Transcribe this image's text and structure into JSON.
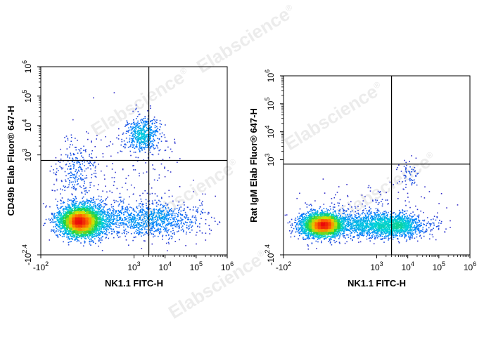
{
  "watermark": {
    "text": "Elabscience",
    "mark": "®"
  },
  "chart_data": [
    {
      "type": "scatter",
      "subtype": "flow-cytometry-density-dot-plot",
      "xlabel": "NK1.1 FITC-H",
      "ylabel": "CD49b Elab Fluor® 647-H",
      "x_scale": "biexponential",
      "y_scale": "biexponential",
      "xlim": [
        -100,
        1000000
      ],
      "ylim": [
        -250,
        1000000
      ],
      "x_ticks": [
        {
          "value": -100,
          "base": "-10",
          "exp": "2"
        },
        {
          "value": 1000,
          "base": "10",
          "exp": "3"
        },
        {
          "value": 10000,
          "base": "10",
          "exp": "4"
        },
        {
          "value": 100000,
          "base": "10",
          "exp": "5"
        },
        {
          "value": 1000000,
          "base": "10",
          "exp": "6"
        }
      ],
      "y_ticks": [
        {
          "value": -250,
          "base": "-10",
          "exp": "2.4"
        },
        {
          "value": 1000,
          "base": "10",
          "exp": "3"
        },
        {
          "value": 10000,
          "base": "10",
          "exp": "4"
        },
        {
          "value": 100000,
          "base": "10",
          "exp": "5"
        },
        {
          "value": 1000000,
          "base": "10",
          "exp": "6"
        }
      ],
      "quadrant_gate": {
        "x": 3000,
        "y": 650
      },
      "populations": [
        {
          "name": "double-negative",
          "center": [
            250,
            20
          ],
          "spread": "dense, main"
        },
        {
          "name": "NK1.1+ CD49b+",
          "center": [
            12000,
            15000
          ],
          "spread": "tight cluster"
        },
        {
          "name": "NK1.1+ CD49b-",
          "center": [
            12000,
            20
          ],
          "spread": "diffuse"
        },
        {
          "name": "NK1.1- CD49b+",
          "center": [
            150,
            2500
          ],
          "spread": "sparse"
        }
      ]
    },
    {
      "type": "scatter",
      "subtype": "flow-cytometry-density-dot-plot",
      "xlabel": "NK1.1 FITC-H",
      "ylabel": "Rat IgM Elab Fluor® 647-H",
      "x_scale": "biexponential",
      "y_scale": "biexponential",
      "xlim": [
        -100,
        1000000
      ],
      "ylim": [
        -250,
        1000000
      ],
      "x_ticks": [
        {
          "value": -100,
          "base": "-10",
          "exp": "2"
        },
        {
          "value": 1000,
          "base": "10",
          "exp": "3"
        },
        {
          "value": 10000,
          "base": "10",
          "exp": "4"
        },
        {
          "value": 100000,
          "base": "10",
          "exp": "5"
        },
        {
          "value": 1000000,
          "base": "10",
          "exp": "6"
        }
      ],
      "y_ticks": [
        {
          "value": -250,
          "base": "-10",
          "exp": "2.4"
        },
        {
          "value": 1000,
          "base": "10",
          "exp": "3"
        },
        {
          "value": 10000,
          "base": "10",
          "exp": "4"
        },
        {
          "value": 100000,
          "base": "10",
          "exp": "5"
        },
        {
          "value": 1000000,
          "base": "10",
          "exp": "6"
        }
      ],
      "quadrant_gate": {
        "x": 3000,
        "y": 700
      },
      "populations": [
        {
          "name": "double-negative",
          "center": [
            300,
            20
          ],
          "spread": "dense, main"
        },
        {
          "name": "NK1.1+ Rat IgM-",
          "center": [
            15000,
            20
          ],
          "spread": "elongated tail"
        },
        {
          "name": "NK1.1+ Rat IgM+ (sparse)",
          "center": [
            30000,
            1500
          ],
          "spread": "very sparse"
        }
      ]
    }
  ]
}
